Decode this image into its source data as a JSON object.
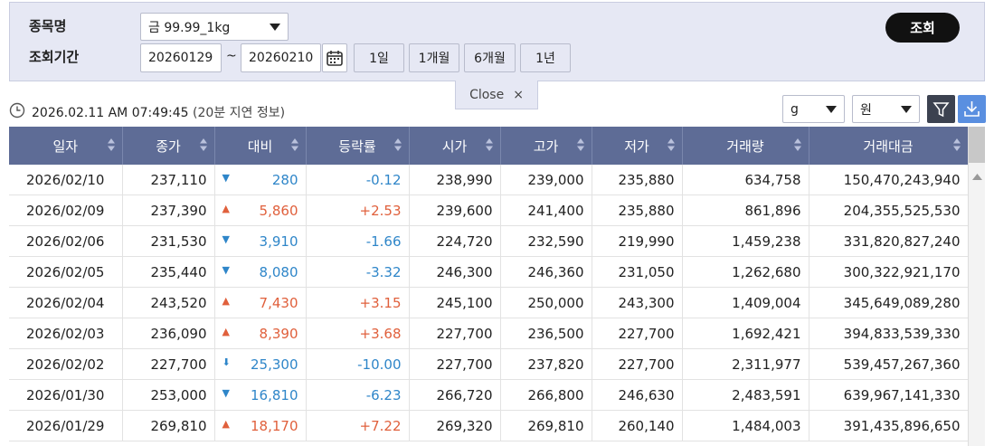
{
  "filter": {
    "item_label": "종목명",
    "item_value": "금 99.99_1kg",
    "period_label": "조회기간",
    "start_date": "20260129",
    "tilde": "~",
    "end_date": "20260210",
    "period_buttons": [
      "1일",
      "1개월",
      "6개월",
      "1년"
    ],
    "search_button": "조회"
  },
  "close_tab": {
    "label": "Close",
    "icon": "×"
  },
  "toolbar": {
    "timestamp": "2026.02.11 AM 07:49:45",
    "delay_note": "(20분 지연 정보)",
    "unit_select": "g",
    "currency_select": "원"
  },
  "table": {
    "columns": [
      "일자",
      "종가",
      "대비",
      "등락률",
      "시가",
      "고가",
      "저가",
      "거래량",
      "거래대금"
    ],
    "rows": [
      [
        "2026/02/10",
        "237,110",
        "▼",
        "280",
        "-0.12",
        "238,990",
        "239,000",
        "235,880",
        "634,758",
        "150,470,243,940"
      ],
      [
        "2026/02/09",
        "237,390",
        "▲",
        "5,860",
        "+2.53",
        "239,600",
        "241,400",
        "235,880",
        "861,896",
        "204,355,525,530"
      ],
      [
        "2026/02/06",
        "231,530",
        "▼",
        "3,910",
        "-1.66",
        "224,720",
        "232,590",
        "219,990",
        "1,459,238",
        "331,820,827,240"
      ],
      [
        "2026/02/05",
        "235,440",
        "▼",
        "8,080",
        "-3.32",
        "246,300",
        "246,360",
        "231,050",
        "1,262,680",
        "300,322,921,170"
      ],
      [
        "2026/02/04",
        "243,520",
        "▲",
        "7,430",
        "+3.15",
        "245,100",
        "250,000",
        "243,300",
        "1,409,004",
        "345,649,089,280"
      ],
      [
        "2026/02/03",
        "236,090",
        "▲",
        "8,390",
        "+3.68",
        "227,700",
        "236,500",
        "227,700",
        "1,692,421",
        "394,833,539,330"
      ],
      [
        "2026/02/02",
        "227,700",
        "⬇",
        "25,300",
        "-10.00",
        "227,700",
        "237,820",
        "227,700",
        "2,311,977",
        "539,457,267,360"
      ],
      [
        "2026/01/30",
        "253,000",
        "▼",
        "16,810",
        "-6.23",
        "266,720",
        "266,800",
        "246,630",
        "2,483,591",
        "639,967,141,330"
      ],
      [
        "2026/01/29",
        "269,810",
        "▲",
        "18,170",
        "+7.22",
        "269,320",
        "269,810",
        "260,140",
        "1,484,003",
        "391,435,896,650"
      ]
    ]
  }
}
